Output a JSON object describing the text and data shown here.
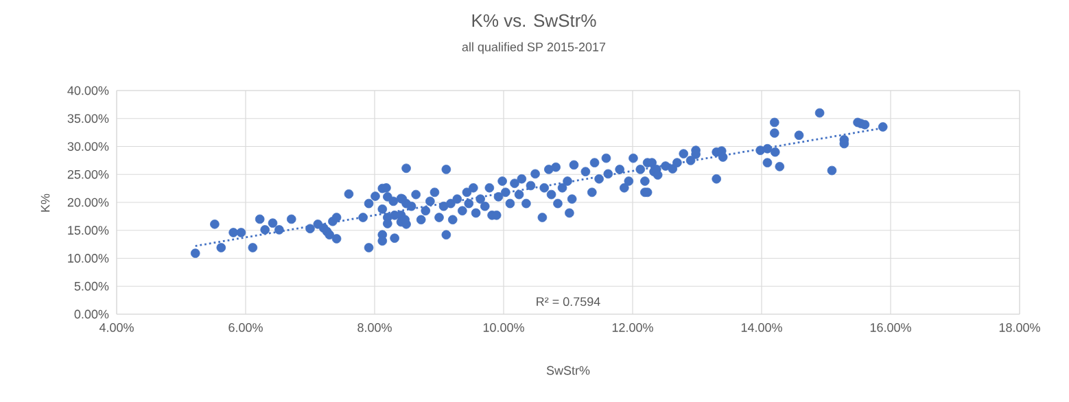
{
  "chart_data": {
    "type": "scatter",
    "title": "K% vs. SwStr%",
    "subtitle": "all qualified SP 2015-2017",
    "xlabel": "SwStr%",
    "ylabel": "K%",
    "xlim": [
      4,
      18
    ],
    "ylim": [
      0,
      40
    ],
    "xticks": [
      {
        "value": 4,
        "label": "4.00%"
      },
      {
        "value": 6,
        "label": "6.00%"
      },
      {
        "value": 8,
        "label": "8.00%"
      },
      {
        "value": 10,
        "label": "10.00%"
      },
      {
        "value": 12,
        "label": "12.00%"
      },
      {
        "value": 14,
        "label": "14.00%"
      },
      {
        "value": 16,
        "label": "16.00%"
      },
      {
        "value": 18,
        "label": "18.00%"
      }
    ],
    "yticks": [
      {
        "value": 0,
        "label": "0.00%"
      },
      {
        "value": 5,
        "label": "5.00%"
      },
      {
        "value": 10,
        "label": "10.00%"
      },
      {
        "value": 15,
        "label": "15.00%"
      },
      {
        "value": 20,
        "label": "20.00%"
      },
      {
        "value": 25,
        "label": "25.00%"
      },
      {
        "value": 30,
        "label": "30.00%"
      },
      {
        "value": 35,
        "label": "35.00%"
      },
      {
        "value": 40,
        "label": "40.00%"
      }
    ],
    "grid": true,
    "series": [
      {
        "type": "scatter",
        "marker": "circle",
        "color": "#4472c4",
        "x": [
          5.22,
          5.52,
          5.62,
          5.81,
          5.93,
          6.11,
          6.22,
          6.3,
          6.42,
          6.52,
          6.71,
          7.0,
          7.12,
          7.21,
          7.26,
          7.3,
          7.35,
          7.41,
          7.41,
          7.6,
          7.82,
          7.91,
          7.91,
          8.01,
          8.12,
          8.12,
          8.12,
          8.12,
          8.2,
          8.2,
          8.2,
          8.31,
          8.31,
          8.41,
          8.41,
          8.41,
          8.49,
          8.49,
          8.49,
          9.11,
          9.11,
          8.18,
          8.29,
          8.43,
          8.47,
          8.57,
          8.64,
          8.72,
          8.79,
          8.86,
          8.93,
          9.0,
          9.07,
          9.18,
          9.21,
          9.28,
          9.36,
          9.43,
          9.46,
          9.53,
          9.57,
          9.64,
          9.71,
          9.78,
          9.82,
          9.89,
          9.92,
          9.98,
          10.03,
          10.1,
          10.17,
          10.24,
          10.28,
          10.35,
          10.42,
          10.49,
          10.6,
          10.63,
          10.7,
          10.74,
          10.81,
          10.84,
          10.91,
          10.99,
          11.02,
          11.06,
          11.09,
          11.27,
          11.37,
          11.41,
          11.48,
          11.59,
          11.62,
          11.8,
          11.87,
          11.94,
          12.01,
          12.12,
          12.19,
          12.23,
          12.33,
          12.19,
          12.23,
          12.3,
          12.37,
          12.39,
          12.51,
          12.62,
          12.69,
          12.79,
          12.9,
          12.98,
          12.98,
          13.3,
          13.3,
          13.38,
          13.4,
          13.98,
          14.09,
          14.09,
          14.2,
          14.2,
          14.21,
          14.28,
          14.58,
          14.9,
          15.09,
          15.28,
          15.28,
          15.49,
          15.54,
          15.6,
          15.88
        ],
        "values": [
          10.9,
          16.1,
          11.9,
          14.6,
          14.6,
          11.9,
          17.0,
          15.1,
          16.3,
          15.1,
          17.0,
          15.3,
          16.1,
          15.4,
          14.8,
          14.2,
          16.6,
          13.5,
          17.3,
          21.5,
          17.3,
          11.9,
          19.8,
          21.1,
          22.5,
          18.8,
          14.2,
          13.1,
          21.0,
          17.3,
          16.2,
          13.6,
          17.7,
          20.7,
          17.7,
          16.5,
          26.1,
          19.8,
          16.1,
          25.9,
          14.2,
          22.6,
          20.2,
          20.6,
          16.9,
          19.3,
          21.4,
          16.9,
          18.5,
          20.2,
          21.8,
          17.3,
          19.3,
          19.8,
          16.9,
          20.6,
          18.5,
          21.8,
          19.8,
          22.6,
          18.1,
          20.6,
          19.3,
          22.6,
          17.7,
          17.7,
          21.0,
          23.8,
          21.8,
          19.8,
          23.4,
          21.4,
          24.2,
          19.8,
          23.0,
          25.1,
          17.3,
          22.6,
          25.9,
          21.4,
          26.3,
          19.8,
          22.6,
          23.8,
          18.1,
          20.6,
          26.7,
          25.5,
          21.8,
          27.1,
          24.2,
          27.9,
          25.1,
          25.9,
          22.6,
          23.8,
          27.9,
          25.9,
          21.8,
          27.1,
          25.5,
          23.8,
          21.8,
          27.1,
          25.9,
          24.9,
          26.5,
          26.0,
          27.1,
          28.7,
          27.5,
          29.3,
          28.6,
          24.2,
          29.0,
          29.2,
          28.1,
          29.3,
          29.6,
          27.1,
          34.3,
          32.4,
          29.0,
          26.4,
          32.0,
          36.0,
          25.7,
          31.2,
          30.5,
          34.3,
          34.1,
          33.9,
          33.5
        ]
      },
      {
        "type": "line",
        "color": "#4472c4",
        "line_style": "dotted",
        "marker": "none",
        "x": [
          5.22,
          15.88
        ],
        "values": [
          12.2,
          33.3
        ]
      }
    ],
    "annotations": [
      "R² = 0.7594"
    ]
  }
}
